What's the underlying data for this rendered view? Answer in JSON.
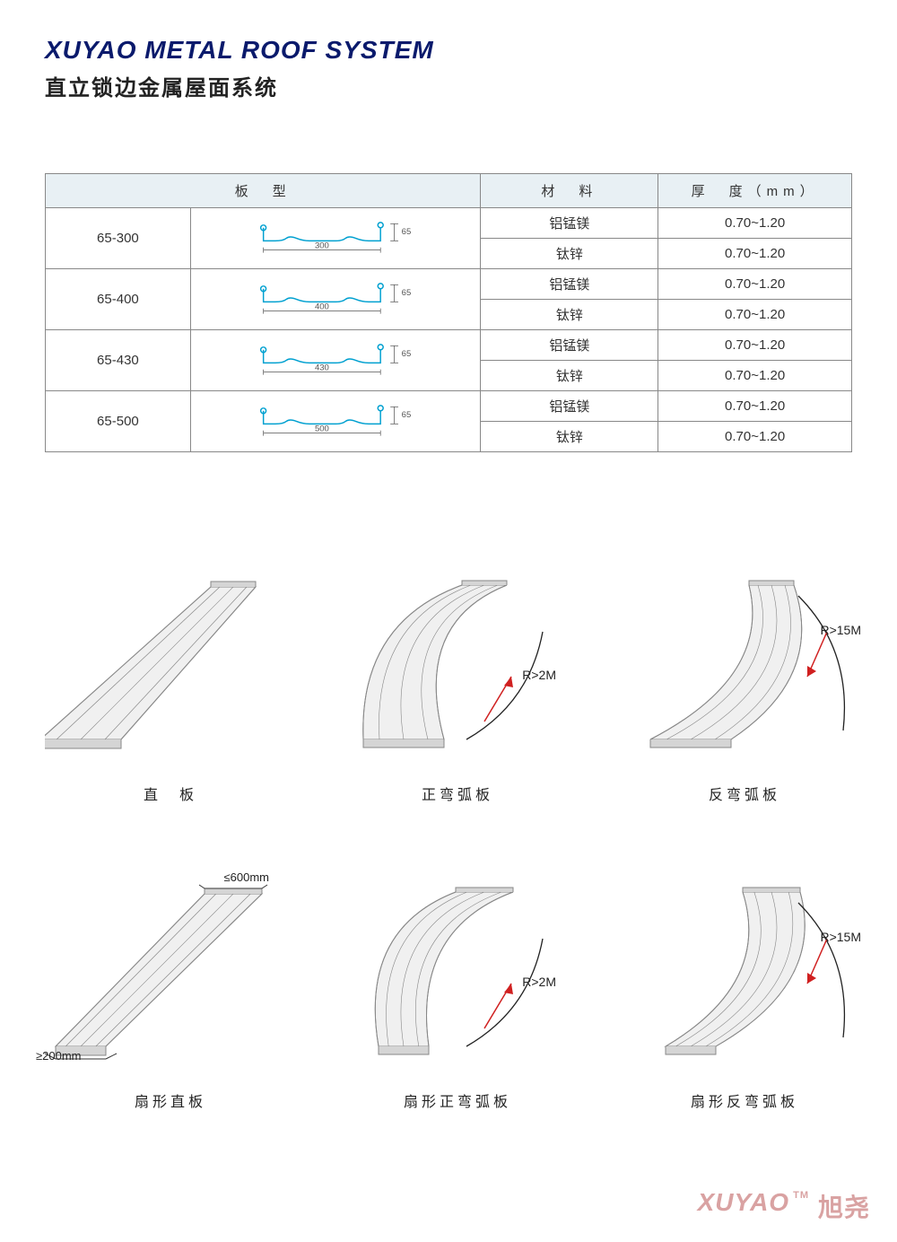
{
  "header": {
    "title_en": "XUYAO METAL ROOF SYSTEM",
    "title_cn": "直立锁边金属屋面系统"
  },
  "table": {
    "headers": {
      "model": "板　型",
      "material": "材　料",
      "thickness": "厚　度（mm）"
    },
    "rows": [
      {
        "model": "65-300",
        "width": "300",
        "height": "65",
        "lines": [
          {
            "mat": "铝锰镁",
            "thick": "0.70~1.20"
          },
          {
            "mat": "钛锌",
            "thick": "0.70~1.20"
          }
        ]
      },
      {
        "model": "65-400",
        "width": "400",
        "height": "65",
        "lines": [
          {
            "mat": "铝锰镁",
            "thick": "0.70~1.20"
          },
          {
            "mat": "钛锌",
            "thick": "0.70~1.20"
          }
        ]
      },
      {
        "model": "65-430",
        "width": "430",
        "height": "65",
        "lines": [
          {
            "mat": "铝锰镁",
            "thick": "0.70~1.20"
          },
          {
            "mat": "钛锌",
            "thick": "0.70~1.20"
          }
        ]
      },
      {
        "model": "65-500",
        "width": "500",
        "height": "65",
        "lines": [
          {
            "mat": "铝锰镁",
            "thick": "0.70~1.20"
          },
          {
            "mat": "钛锌",
            "thick": "0.70~1.20"
          }
        ]
      }
    ],
    "profile_color": "#00a0d0",
    "dim_color": "#555555"
  },
  "panels": [
    {
      "caption": "直　板",
      "type": "straight",
      "radius": "",
      "arc_dir": "none",
      "fan": false
    },
    {
      "caption": "正弯弧板",
      "type": "curve",
      "radius": "R>2M",
      "arc_dir": "up",
      "fan": false
    },
    {
      "caption": "反弯弧板",
      "type": "curve",
      "radius": "R>15M",
      "arc_dir": "down",
      "fan": false
    },
    {
      "caption": "扇形直板",
      "type": "straight",
      "radius": "",
      "arc_dir": "none",
      "fan": true,
      "dim_top": "≤600mm",
      "dim_bottom": "≥200mm"
    },
    {
      "caption": "扇形正弯弧板",
      "type": "curve",
      "radius": "R>2M",
      "arc_dir": "up",
      "fan": true
    },
    {
      "caption": "扇形反弯弧板",
      "type": "curve",
      "radius": "R>15M",
      "arc_dir": "down",
      "fan": true
    }
  ],
  "panel_style": {
    "fill_light": "#f0f0f0",
    "fill_mid": "#d5d5d5",
    "fill_dark": "#bcbcbc",
    "stroke": "#888888",
    "arrow_color": "#d02020",
    "arc_color": "#222222"
  },
  "watermark": {
    "en": "XUYAO",
    "tm": "TM",
    "cn": "旭尧"
  }
}
